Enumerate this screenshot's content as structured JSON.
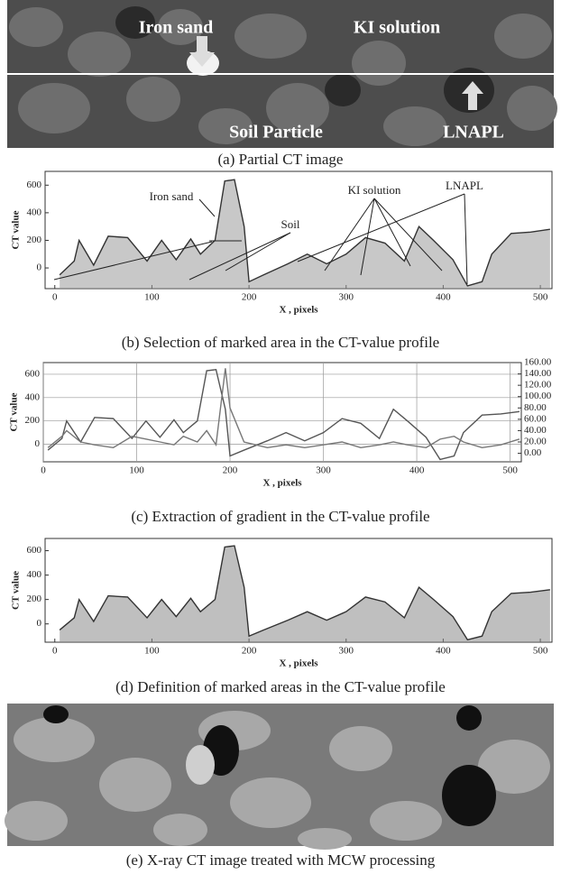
{
  "figure": {
    "panel_a": {
      "labels": [
        "Iron sand",
        "KI solution",
        "Soil Particle",
        "LNAPL"
      ]
    },
    "captions": [
      "(a)    Partial CT image",
      "(b) Selection of marked area in the CT-value profile",
      "(c) Extraction of gradient in the CT-value profile",
      "(d) Definition of marked areas in the CT-value profile",
      "(e) X-ray CT image treated with MCW processing"
    ]
  },
  "chart_data": [
    {
      "type": "line",
      "y_label": "CT value",
      "x_label": "X , pixels",
      "annotations": [
        "Iron sand",
        "Soil",
        "KI solution",
        "LNAPL"
      ],
      "x": [
        5,
        20,
        25,
        40,
        55,
        75,
        95,
        110,
        125,
        140,
        150,
        165,
        175,
        185,
        195,
        200,
        215,
        240,
        260,
        280,
        300,
        320,
        340,
        360,
        375,
        390,
        410,
        425,
        440,
        450,
        470,
        490,
        510
      ],
      "series": [
        {
          "color": "#333333",
          "fill": "#9a9a9a",
          "values": [
            -50,
            50,
            200,
            20,
            230,
            220,
            50,
            200,
            60,
            210,
            100,
            200,
            630,
            640,
            300,
            -100,
            -50,
            30,
            100,
            30,
            100,
            220,
            180,
            50,
            300,
            200,
            60,
            -130,
            -100,
            100,
            250,
            260,
            280
          ]
        }
      ],
      "xlim": [
        -10,
        512
      ],
      "ylim": [
        -150,
        700
      ],
      "xticks": [
        0,
        100,
        200,
        300,
        400,
        500
      ],
      "yticks": [
        0,
        200,
        400,
        600
      ],
      "grid": false
    },
    {
      "type": "line",
      "y_label": "CT value",
      "x_label": "X , pixels",
      "x": [
        5,
        20,
        25,
        40,
        55,
        75,
        95,
        110,
        125,
        140,
        150,
        165,
        175,
        185,
        195,
        200,
        215,
        240,
        260,
        280,
        300,
        320,
        340,
        360,
        375,
        390,
        410,
        425,
        440,
        450,
        470,
        490,
        510
      ],
      "series": [
        {
          "color": "#555555",
          "values": [
            -50,
            50,
            200,
            20,
            230,
            220,
            50,
            200,
            60,
            210,
            100,
            200,
            630,
            640,
            300,
            -100,
            -50,
            30,
            100,
            30,
            100,
            220,
            180,
            50,
            300,
            200,
            60,
            -130,
            -100,
            100,
            250,
            260,
            280
          ]
        },
        {
          "color": "#777777",
          "axis": "y2",
          "values": [
            10,
            30,
            40,
            20,
            15,
            10,
            30,
            25,
            20,
            15,
            30,
            20,
            40,
            15,
            150,
            80,
            20,
            10,
            15,
            10,
            15,
            20,
            10,
            15,
            20,
            15,
            10,
            25,
            30,
            20,
            10,
            15,
            25
          ]
        }
      ],
      "xlim": [
        0,
        512
      ],
      "ylim": [
        -150,
        700
      ],
      "xticks": [
        0,
        100,
        200,
        300,
        400,
        500
      ],
      "yticks": [
        0,
        200,
        400,
        600
      ],
      "y2lim": [
        -15,
        160
      ],
      "y2ticks": [
        {
          "value": 0,
          "label": "0.00"
        },
        {
          "value": 20,
          "label": "20.00"
        },
        {
          "value": 40,
          "label": "40.00"
        },
        {
          "value": 60,
          "label": "60.00"
        },
        {
          "value": 80,
          "label": "80.00"
        },
        {
          "value": 100,
          "label": "100.00"
        },
        {
          "value": 120,
          "label": "120.00"
        },
        {
          "value": 140,
          "label": "140.00"
        },
        {
          "value": 160,
          "label": "160.00"
        }
      ],
      "grid": true
    },
    {
      "type": "line",
      "y_label": "CT value",
      "x_label": "X , pixels",
      "x": [
        5,
        20,
        25,
        40,
        55,
        75,
        95,
        110,
        125,
        140,
        150,
        165,
        175,
        185,
        195,
        200,
        215,
        240,
        260,
        280,
        300,
        320,
        340,
        360,
        375,
        390,
        410,
        425,
        440,
        450,
        470,
        490,
        510
      ],
      "series": [
        {
          "color": "#333333",
          "fill": "#8a8a8a",
          "values": [
            -50,
            50,
            200,
            20,
            230,
            220,
            50,
            200,
            60,
            210,
            100,
            200,
            630,
            640,
            300,
            -100,
            -50,
            30,
            100,
            30,
            100,
            220,
            180,
            50,
            300,
            200,
            60,
            -130,
            -100,
            100,
            250,
            260,
            280
          ]
        }
      ],
      "xlim": [
        -10,
        512
      ],
      "ylim": [
        -150,
        700
      ],
      "xticks": [
        0,
        100,
        200,
        300,
        400,
        500
      ],
      "yticks": [
        0,
        200,
        400,
        600
      ],
      "grid": false
    }
  ]
}
